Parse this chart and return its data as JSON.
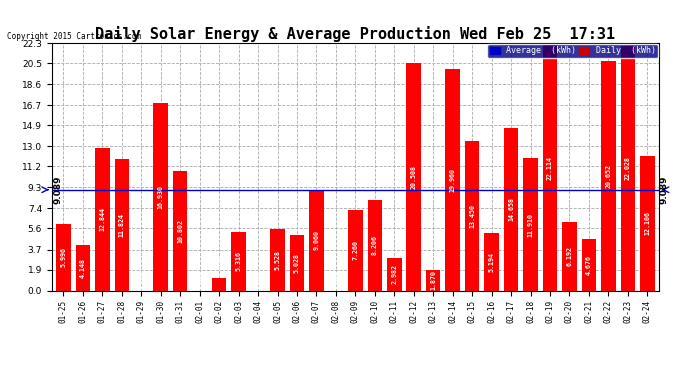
{
  "title": "Daily Solar Energy & Average Production Wed Feb 25  17:31",
  "copyright": "Copyright 2015 Cartronics.com",
  "categories": [
    "01-25",
    "01-26",
    "01-27",
    "01-28",
    "01-29",
    "01-30",
    "01-31",
    "02-01",
    "02-02",
    "02-03",
    "02-04",
    "02-05",
    "02-06",
    "02-07",
    "02-08",
    "02-09",
    "02-10",
    "02-11",
    "02-12",
    "02-13",
    "02-14",
    "02-15",
    "02-16",
    "02-17",
    "02-18",
    "02-19",
    "02-20",
    "02-21",
    "02-22",
    "02-23",
    "02-24"
  ],
  "values": [
    5.996,
    4.148,
    12.844,
    11.824,
    0.0,
    16.93,
    10.802,
    0.0,
    1.104,
    5.316,
    0.0,
    5.528,
    5.028,
    9.06,
    0.0,
    7.26,
    8.206,
    2.982,
    20.508,
    1.87,
    19.96,
    13.45,
    5.194,
    14.658,
    11.91,
    22.114,
    6.192,
    4.676,
    20.652,
    22.028,
    12.106
  ],
  "average": 9.089,
  "bar_color": "#ff0000",
  "average_line_color": "#0000cc",
  "background_color": "#ffffff",
  "grid_color": "#aaaaaa",
  "ylim": [
    0.0,
    22.3
  ],
  "yticks": [
    0.0,
    1.9,
    3.7,
    5.6,
    7.4,
    9.3,
    11.2,
    13.0,
    14.9,
    16.7,
    18.6,
    20.5,
    22.3
  ],
  "title_fontsize": 11,
  "legend_avg_color": "#0000cc",
  "legend_daily_color": "#cc0000",
  "value_fontsize": 4.8,
  "avg_label": "9.089"
}
